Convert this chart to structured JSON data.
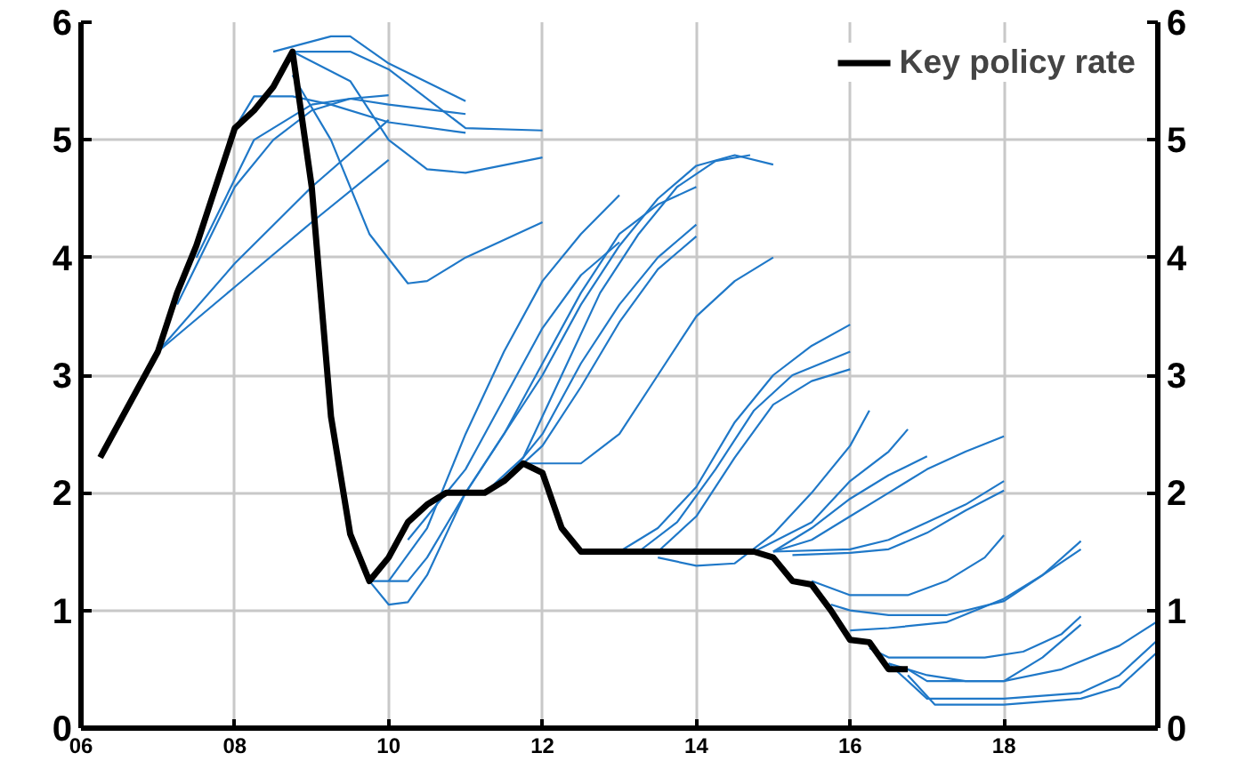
{
  "chart_data": {
    "type": "line",
    "xlim": [
      2006,
      2020
    ],
    "ylim": [
      0,
      6
    ],
    "y2lim": [
      0,
      6
    ],
    "xticks": [
      {
        "value": 2006,
        "label": "06"
      },
      {
        "value": 2008,
        "label": "08"
      },
      {
        "value": 2010,
        "label": "10"
      },
      {
        "value": 2012,
        "label": "12"
      },
      {
        "value": 2014,
        "label": "14"
      },
      {
        "value": 2016,
        "label": "16"
      },
      {
        "value": 2018,
        "label": "18"
      },
      {
        "value": 2020,
        "label": null
      }
    ],
    "yticks": [
      0,
      1,
      2,
      3,
      4,
      5,
      6
    ],
    "y2ticks": [
      0,
      1,
      2,
      3,
      4,
      5,
      6
    ],
    "grid": true,
    "legend": "top right",
    "line_style": "solid",
    "marker": "none",
    "series": [
      {
        "color": "#1f78c8",
        "x": [
          2007,
          2008,
          2009,
          2010
        ],
        "values": [
          3.2,
          3.75,
          4.3,
          4.83
        ]
      },
      {
        "color": "#1f78c8",
        "x": [
          2007,
          2008,
          2009,
          2010
        ],
        "values": [
          3.2,
          3.95,
          4.6,
          5.17
        ]
      },
      {
        "color": "#1f78c8",
        "x": [
          2007.25,
          2008,
          2008.5,
          2009,
          2009.5,
          2010
        ],
        "values": [
          3.6,
          4.6,
          5.0,
          5.25,
          5.35,
          5.38
        ]
      },
      {
        "color": "#1f78c8",
        "x": [
          2007.5,
          2008.25,
          2009,
          2009.5,
          2010,
          2011
        ],
        "values": [
          4.0,
          5.0,
          5.3,
          5.35,
          5.3,
          5.22
        ]
      },
      {
        "color": "#1f78c8",
        "x": [
          2008,
          2008.25,
          2008.75,
          2009.25,
          2010,
          2011
        ],
        "values": [
          5.1,
          5.37,
          5.37,
          5.3,
          5.15,
          5.06
        ]
      },
      {
        "color": "#1f78c8",
        "x": [
          2008.75,
          2009.25,
          2009.75,
          2010.25,
          2010.5,
          2011,
          2012
        ],
        "values": [
          5.55,
          5.0,
          4.2,
          3.78,
          3.8,
          4.0,
          4.3
        ]
      },
      {
        "color": "#1f78c8",
        "x": [
          2008.75,
          2009.5,
          2010,
          2010.5,
          2011,
          2012
        ],
        "values": [
          5.75,
          5.5,
          5.0,
          4.75,
          4.72,
          4.85
        ]
      },
      {
        "color": "#1f78c8",
        "x": [
          2008.75,
          2009.5,
          2010,
          2011,
          2012
        ],
        "values": [
          5.75,
          5.75,
          5.6,
          5.1,
          5.08
        ]
      },
      {
        "color": "#1f78c8",
        "x": [
          2008.5,
          2009.25,
          2009.5,
          2010,
          2011
        ],
        "values": [
          5.75,
          5.88,
          5.88,
          5.65,
          5.33
        ]
      },
      {
        "color": "#1f78c8",
        "x": [
          2010,
          2010.5,
          2011,
          2011.5,
          2012,
          2012.5,
          2013
        ],
        "values": [
          1.25,
          1.7,
          2.5,
          3.2,
          3.8,
          4.2,
          4.53
        ]
      },
      {
        "color": "#1f78c8",
        "x": [
          2010.25,
          2011,
          2011.5,
          2012,
          2012.5,
          2013
        ],
        "values": [
          1.6,
          2.2,
          2.8,
          3.4,
          3.85,
          4.13
        ]
      },
      {
        "color": "#1f78c8",
        "x": [
          2009.75,
          2010.25,
          2010.5,
          2011,
          2011.5,
          2012,
          2012.5,
          2013,
          2013.5,
          2014,
          2014.5,
          2015
        ],
        "values": [
          1.25,
          1.25,
          1.45,
          2.0,
          2.5,
          3.0,
          3.6,
          4.1,
          4.5,
          4.78,
          4.87,
          4.79
        ]
      },
      {
        "color": "#1f78c8",
        "x": [
          2009.75,
          2010,
          2010.25,
          2010.5,
          2011,
          2011.5,
          2012,
          2012.5,
          2013,
          2013.5,
          2014
        ],
        "values": [
          1.25,
          1.05,
          1.07,
          1.3,
          2.0,
          2.5,
          3.1,
          3.7,
          4.2,
          4.45,
          4.6
        ]
      },
      {
        "color": "#1f78c8",
        "x": [
          2011.25,
          2011.75,
          2012.25,
          2012.75,
          2013.25,
          2013.75,
          2014.25,
          2014.7
        ],
        "values": [
          2.0,
          2.3,
          3.0,
          3.7,
          4.2,
          4.6,
          4.82,
          4.87
        ]
      },
      {
        "color": "#1f78c8",
        "x": [
          2011.5,
          2012,
          2012.5,
          2013,
          2013.5,
          2014
        ],
        "values": [
          2.1,
          2.5,
          3.1,
          3.6,
          4.0,
          4.28
        ]
      },
      {
        "color": "#1f78c8",
        "x": [
          2011.5,
          2012,
          2012.5,
          2013,
          2013.5,
          2014
        ],
        "values": [
          2.1,
          2.4,
          2.9,
          3.45,
          3.9,
          4.18
        ]
      },
      {
        "color": "#1f78c8",
        "x": [
          2011.75,
          2012.5,
          2013,
          2013.5,
          2014,
          2014.5,
          2015
        ],
        "values": [
          2.25,
          2.25,
          2.5,
          3.0,
          3.5,
          3.8,
          4.0
        ]
      },
      {
        "color": "#1f78c8",
        "x": [
          2013,
          2013.5,
          2014,
          2014.5,
          2015,
          2015.5,
          2016
        ],
        "values": [
          1.5,
          1.7,
          2.05,
          2.6,
          3.0,
          3.25,
          3.43
        ]
      },
      {
        "color": "#1f78c8",
        "x": [
          2013.25,
          2013.75,
          2014.25,
          2014.75,
          2015.25,
          2016
        ],
        "values": [
          1.5,
          1.75,
          2.2,
          2.7,
          3.0,
          3.2
        ]
      },
      {
        "color": "#1f78c8",
        "x": [
          2013.5,
          2014,
          2014.5,
          2015,
          2015.5,
          2016
        ],
        "values": [
          1.5,
          1.8,
          2.3,
          2.75,
          2.95,
          3.05
        ]
      },
      {
        "color": "#1f78c8",
        "x": [
          2013.5,
          2014,
          2014.5,
          2015,
          2015.5,
          2016,
          2016.25
        ],
        "values": [
          1.45,
          1.38,
          1.4,
          1.65,
          2.0,
          2.4,
          2.7
        ]
      },
      {
        "color": "#1f78c8",
        "x": [
          2014.75,
          2015.5,
          2016,
          2016.5,
          2016.75
        ],
        "values": [
          1.5,
          1.75,
          2.1,
          2.35,
          2.54
        ]
      },
      {
        "color": "#1f78c8",
        "x": [
          2015,
          2015.5,
          2016,
          2016.5,
          2017
        ],
        "values": [
          1.5,
          1.7,
          1.95,
          2.15,
          2.31
        ]
      },
      {
        "color": "#1f78c8",
        "x": [
          2015,
          2015.5,
          2016,
          2016.5,
          2017,
          2017.5,
          2018
        ],
        "values": [
          1.5,
          1.6,
          1.8,
          2.0,
          2.2,
          2.35,
          2.48
        ]
      },
      {
        "color": "#1f78c8",
        "x": [
          2015,
          2016,
          2016.5,
          2017,
          2017.5,
          2018
        ],
        "values": [
          1.5,
          1.52,
          1.6,
          1.75,
          1.9,
          2.1
        ]
      },
      {
        "color": "#1f78c8",
        "x": [
          2015.25,
          2016,
          2016.5,
          2017,
          2017.5,
          2018
        ],
        "values": [
          1.47,
          1.49,
          1.52,
          1.66,
          1.85,
          2.02
        ]
      },
      {
        "color": "#1f78c8",
        "x": [
          2015.5,
          2016,
          2016.75,
          2017.25,
          2017.75,
          2018
        ],
        "values": [
          1.25,
          1.13,
          1.13,
          1.25,
          1.45,
          1.64
        ]
      },
      {
        "color": "#1f78c8",
        "x": [
          2015.75,
          2016,
          2016.5,
          2017.25,
          2018,
          2018.5,
          2019
        ],
        "values": [
          1.05,
          1.0,
          0.96,
          0.96,
          1.08,
          1.3,
          1.59
        ]
      },
      {
        "color": "#1f78c8",
        "x": [
          2016,
          2016.5,
          2017.25,
          2018,
          2018.5,
          2019
        ],
        "values": [
          0.83,
          0.85,
          0.9,
          1.1,
          1.3,
          1.52
        ]
      },
      {
        "color": "#1f78c8",
        "x": [
          2016.25,
          2016.5,
          2017.75,
          2018.25,
          2018.75,
          2019
        ],
        "values": [
          0.68,
          0.6,
          0.6,
          0.65,
          0.8,
          0.95
        ]
      },
      {
        "color": "#1f78c8",
        "x": [
          2016.5,
          2017,
          2017.5,
          2018,
          2018.5,
          2019
        ],
        "values": [
          0.55,
          0.45,
          0.4,
          0.4,
          0.6,
          0.88
        ]
      },
      {
        "color": "#1f78c8",
        "x": [
          2016.75,
          2017,
          2018,
          2018.75,
          2019.5,
          2020
        ],
        "values": [
          0.5,
          0.4,
          0.4,
          0.5,
          0.7,
          0.91
        ]
      },
      {
        "color": "#1f78c8",
        "x": [
          2016.5,
          2017,
          2018,
          2019,
          2019.5,
          2020
        ],
        "values": [
          0.55,
          0.25,
          0.25,
          0.3,
          0.45,
          0.75
        ]
      },
      {
        "color": "#1f78c8",
        "x": [
          2016.75,
          2017.1,
          2018,
          2019,
          2019.5,
          2020
        ],
        "values": [
          0.45,
          0.2,
          0.2,
          0.25,
          0.35,
          0.65
        ]
      },
      {
        "name": "Key policy rate",
        "color": "#000000",
        "type": "line",
        "x": [
          2006.25,
          2007,
          2007.25,
          2007.5,
          2008,
          2008.25,
          2008.5,
          2008.75,
          2009,
          2009.25,
          2009.5,
          2009.75,
          2010,
          2010.25,
          2010.5,
          2010.75,
          2011,
          2011.25,
          2011.5,
          2011.75,
          2012,
          2012.25,
          2012.5,
          2013,
          2013.5,
          2014,
          2014.5,
          2014.75,
          2015,
          2015.25,
          2015.5,
          2015.75,
          2016,
          2016.25,
          2016.5,
          2016.75
        ],
        "values": [
          2.3,
          3.2,
          3.7,
          4.1,
          5.1,
          5.25,
          5.45,
          5.75,
          4.6,
          2.65,
          1.65,
          1.25,
          1.45,
          1.75,
          1.9,
          2.0,
          2.0,
          2.0,
          2.1,
          2.25,
          2.17,
          1.7,
          1.5,
          1.5,
          1.5,
          1.5,
          1.5,
          1.5,
          1.45,
          1.25,
          1.22,
          1.0,
          0.75,
          0.73,
          0.5,
          0.5
        ]
      }
    ]
  }
}
